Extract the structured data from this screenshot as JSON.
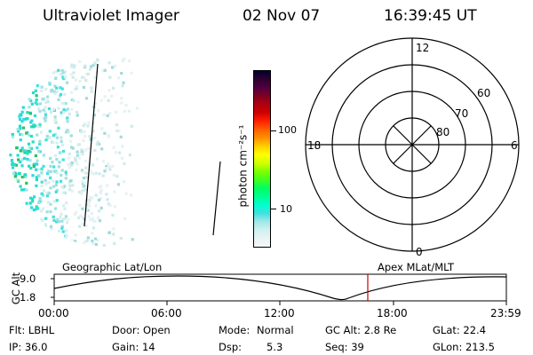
{
  "header": {
    "instrument": "Ultraviolet Imager",
    "date": "02 Nov 07",
    "time": "16:39:45 UT"
  },
  "colorbar": {
    "unit_label": "photon cm⁻²s⁻¹",
    "ticks": [
      "100",
      "10"
    ],
    "colors": [
      "#000030",
      "#300030",
      "#500040",
      "#800020",
      "#b00010",
      "#d00000",
      "#ff2000",
      "#ff6000",
      "#ff9000",
      "#ffd000",
      "#ffff00",
      "#d0ff00",
      "#80ff00",
      "#40ff20",
      "#00ff60",
      "#00ff90",
      "#00ffd0",
      "#40e0e0",
      "#a0e8e8",
      "#d0f0f0",
      "#e8f4f4",
      "#f4f8f8"
    ]
  },
  "polar_grid": {
    "mlt_labels": [
      "12",
      "18",
      "6",
      "0"
    ],
    "lat_labels": [
      "60",
      "70",
      "80"
    ]
  },
  "timeline": {
    "left_title": "Geographic Lat/Lon",
    "right_title": "Apex MLat/MLT",
    "y_axis_label": "GC Alt",
    "y_ticks": [
      "9.0",
      "1.8"
    ],
    "x_ticks": [
      "00:00",
      "06:00",
      "12:00",
      "18:00",
      "23:59"
    ],
    "marker_color": "#cc0000"
  },
  "info": {
    "flt": "Flt: LBHL",
    "ip": "IP: 36.0",
    "door": "Door: Open",
    "gain": "Gain: 14",
    "mode_label": "Mode:",
    "mode_value": "Normal",
    "dsp_label": "Dsp:",
    "dsp_value": "5.3",
    "gc_alt": "GC Alt: 2.8 Re",
    "seq": "Seq: 39",
    "glat": "GLat: 22.4",
    "glon": "GLon: 213.5"
  }
}
